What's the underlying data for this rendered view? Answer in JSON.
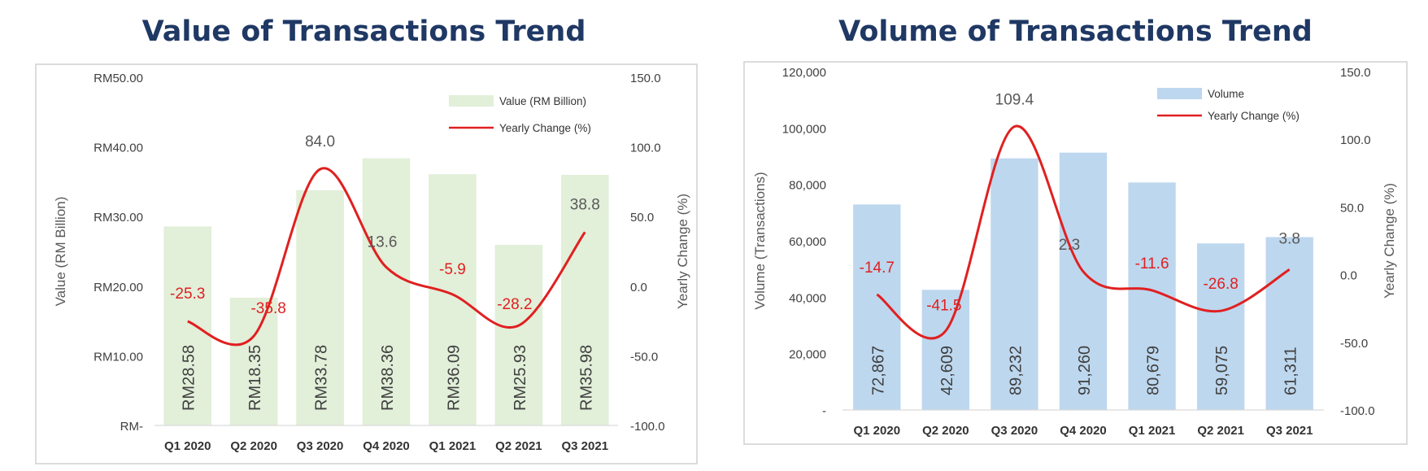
{
  "chart_data": [
    {
      "type": "bar",
      "title": "Value of Transactions Trend",
      "categories": [
        "Q1 2020",
        "Q2 2020",
        "Q3 2020",
        "Q4 2020",
        "Q1 2021",
        "Q2 2021",
        "Q3 2021"
      ],
      "bar_series": {
        "name": "Value (RM Billion)",
        "values": [
          28.58,
          18.35,
          33.78,
          38.36,
          36.09,
          25.93,
          35.98
        ],
        "labels": [
          "RM28.58",
          "RM18.35",
          "RM33.78",
          "RM38.36",
          "RM36.09",
          "RM25.93",
          "RM35.98"
        ],
        "color": "#e2efd9"
      },
      "line_series": {
        "name": "Yearly Change (%)",
        "values": [
          -25.3,
          -35.8,
          84.0,
          13.6,
          -5.9,
          -28.2,
          38.8
        ],
        "labels": [
          "-25.3",
          "-35.8",
          "84.0",
          "13.6",
          "-5.9",
          "-28.2",
          "38.8"
        ],
        "color": "#e02020"
      },
      "ylabel": "Value (RM Billion)",
      "y2label": "Yearly Change (%)",
      "ylim": [
        0,
        50
      ],
      "y2lim": [
        -100,
        150
      ],
      "y_ticks": [
        0,
        10,
        20,
        30,
        40,
        50
      ],
      "y_tick_labels": [
        "RM-",
        "RM10.00",
        "RM20.00",
        "RM30.00",
        "RM40.00",
        "RM50.00"
      ],
      "y2_ticks": [
        -100,
        -50,
        0,
        50,
        100,
        150
      ],
      "y2_tick_labels": [
        "-100.0",
        "-50.0",
        "0.0",
        "50.0",
        "100.0",
        "150.0"
      ],
      "grid": false,
      "legend": "top-right"
    },
    {
      "type": "bar",
      "title": "Volume of Transactions Trend",
      "categories": [
        "Q1 2020",
        "Q2 2020",
        "Q3 2020",
        "Q4 2020",
        "Q1 2021",
        "Q2 2021",
        "Q3 2021"
      ],
      "bar_series": {
        "name": "Volume",
        "values": [
          72867,
          42609,
          89232,
          91260,
          80679,
          59075,
          61311
        ],
        "labels": [
          "72,867",
          "42,609",
          "89,232",
          "91,260",
          "80,679",
          "59,075",
          "61,311"
        ],
        "color": "#bdd7ee"
      },
      "line_series": {
        "name": "Yearly Change (%)",
        "values": [
          -14.7,
          -41.5,
          109.4,
          2.3,
          -11.6,
          -26.8,
          3.8
        ],
        "labels": [
          "-14.7",
          "-41.5",
          "109.4",
          "2.3",
          "-11.6",
          "-26.8",
          "3.8"
        ],
        "color": "#e02020"
      },
      "ylabel": "Volume (Transactions)",
      "y2label": "Yearly Change (%)",
      "ylim": [
        0,
        120000
      ],
      "y2lim": [
        -100,
        150
      ],
      "y_ticks": [
        0,
        20000,
        40000,
        60000,
        80000,
        100000,
        120000
      ],
      "y_tick_labels": [
        "-",
        "20,000",
        "40,000",
        "60,000",
        "80,000",
        "100,000",
        "120,000"
      ],
      "y2_ticks": [
        -100,
        -50,
        0,
        50,
        100,
        150
      ],
      "y2_tick_labels": [
        "-100.0",
        "-50.0",
        "0.0",
        "50.0",
        "100.0",
        "150.0"
      ],
      "grid": false,
      "legend": "top-right"
    }
  ]
}
